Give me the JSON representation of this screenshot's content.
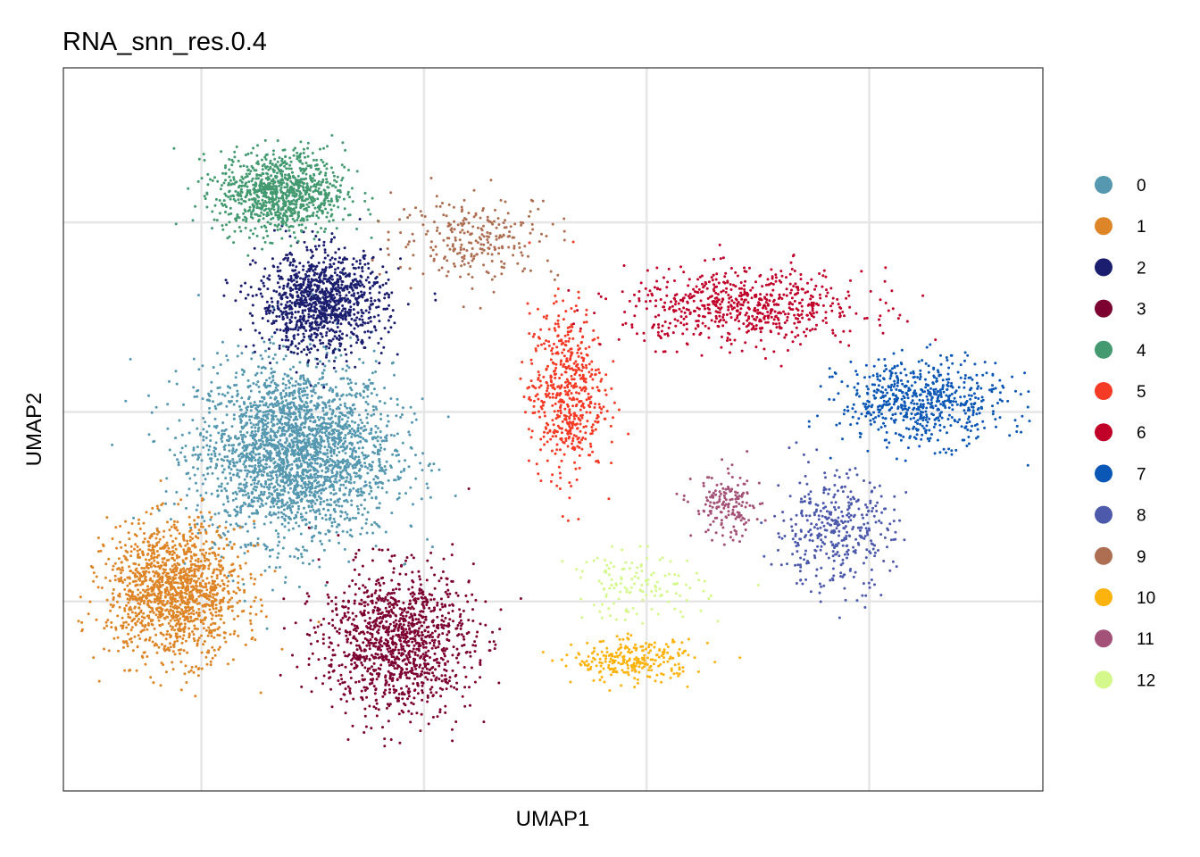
{
  "chart_data": {
    "type": "scatter",
    "title": "RNA_snn_res.0.4",
    "xlabel": "UMAP1",
    "ylabel": "UMAP2",
    "xlim": [
      -7.5,
      14.5
    ],
    "ylim": [
      -6.5,
      8.0
    ],
    "x_ticks": [
      -4.4,
      0.6,
      5.6,
      10.6
    ],
    "y_ticks": [
      -2.7,
      1.1,
      4.9
    ],
    "x_tick_labels_shown": false,
    "y_tick_labels_shown": false,
    "grid": true,
    "legend_position": "right",
    "series": [
      {
        "name": "0",
        "color": "#5598b0",
        "centroid": [
          -2.3,
          0.3
        ],
        "spread": [
          2.6,
          2.1
        ],
        "n_points": 2600
      },
      {
        "name": "1",
        "color": "#dd8527",
        "centroid": [
          -5.0,
          -2.5
        ],
        "spread": [
          1.8,
          1.6
        ],
        "n_points": 1400
      },
      {
        "name": "2",
        "color": "#1b1e6e",
        "centroid": [
          -1.7,
          3.3
        ],
        "spread": [
          1.7,
          1.2
        ],
        "n_points": 1100
      },
      {
        "name": "3",
        "color": "#7c0030",
        "centroid": [
          0.0,
          -3.5
        ],
        "spread": [
          2.0,
          1.7
        ],
        "n_points": 1200
      },
      {
        "name": "4",
        "color": "#449a70",
        "centroid": [
          -2.6,
          5.5
        ],
        "spread": [
          1.7,
          1.0
        ],
        "n_points": 950
      },
      {
        "name": "5",
        "color": "#f53a26",
        "centroid": [
          3.8,
          1.5
        ],
        "spread": [
          1.0,
          2.0
        ],
        "n_points": 550
      },
      {
        "name": "6",
        "color": "#c00029",
        "centroid": [
          7.8,
          3.2
        ],
        "spread": [
          3.2,
          0.9
        ],
        "n_points": 650
      },
      {
        "name": "7",
        "color": "#0b57b5",
        "centroid": [
          11.8,
          1.3
        ],
        "spread": [
          2.2,
          1.0
        ],
        "n_points": 620
      },
      {
        "name": "8",
        "color": "#4d5aac",
        "centroid": [
          9.8,
          -1.3
        ],
        "spread": [
          1.6,
          1.4
        ],
        "n_points": 380
      },
      {
        "name": "9",
        "color": "#ad6e52",
        "centroid": [
          1.8,
          4.6
        ],
        "spread": [
          2.2,
          1.0
        ],
        "n_points": 260
      },
      {
        "name": "10",
        "color": "#fcb30e",
        "centroid": [
          5.3,
          -3.9
        ],
        "spread": [
          1.6,
          0.5
        ],
        "n_points": 260
      },
      {
        "name": "11",
        "color": "#a45177",
        "centroid": [
          7.4,
          -0.8
        ],
        "spread": [
          0.9,
          0.8
        ],
        "n_points": 160
      },
      {
        "name": "12",
        "color": "#d4f88c",
        "centroid": [
          5.4,
          -2.4
        ],
        "spread": [
          1.8,
          0.8
        ],
        "n_points": 130
      }
    ]
  }
}
